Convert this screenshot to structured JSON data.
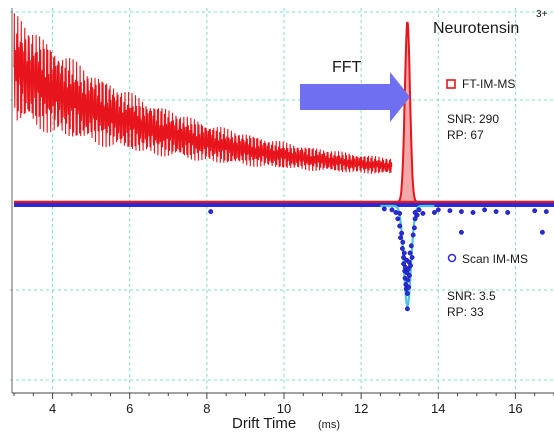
{
  "chart_data": {
    "type": "line",
    "title": "",
    "xlabel": "Drift Time",
    "xlabel_unit": "(ms)",
    "ylabel": "",
    "xlim": [
      3,
      17
    ],
    "x_ticks": [
      4,
      6,
      8,
      10,
      12,
      14,
      16
    ],
    "grid": true,
    "colors": {
      "ft": "#e8141c",
      "scan": "#2a2ad8",
      "fit": "#4cc4e8",
      "arrow": "#6f6ff2",
      "grid": "#7fdcc8"
    },
    "annotations": {
      "analyte": "Neurotensin",
      "charge": "3+",
      "arrow_label": "FFT"
    },
    "series": [
      {
        "name": "FT-IM-MS",
        "snr_label": "SNR: 290",
        "rp_label": "RP: 67",
        "decay_start_x": 3.0,
        "decay_end_x": 12.8,
        "peak_x": 13.2,
        "peak_relative_height": 1.0
      },
      {
        "name": "Scan IM-MS",
        "snr_label": "SNR: 3.5",
        "rp_label": "RP: 33",
        "peak_x": 13.2,
        "points": [
          [
            12.8,
            0.02
          ],
          [
            12.9,
            0.05
          ],
          [
            12.95,
            0.12
          ],
          [
            13.0,
            0.2
          ],
          [
            13.02,
            0.33
          ],
          [
            13.05,
            0.28
          ],
          [
            13.07,
            0.45
          ],
          [
            13.08,
            0.38
          ],
          [
            13.1,
            0.55
          ],
          [
            13.1,
            0.62
          ],
          [
            13.12,
            0.5
          ],
          [
            13.13,
            0.7
          ],
          [
            13.14,
            0.78
          ],
          [
            13.15,
            0.66
          ],
          [
            13.16,
            0.85
          ],
          [
            13.17,
            0.9
          ],
          [
            13.18,
            0.58
          ],
          [
            13.19,
            0.72
          ],
          [
            13.2,
            0.95
          ],
          [
            13.21,
            0.8
          ],
          [
            13.22,
            0.68
          ],
          [
            13.23,
            0.88
          ],
          [
            13.24,
            0.6
          ],
          [
            13.25,
            0.75
          ],
          [
            13.27,
            0.5
          ],
          [
            13.28,
            0.64
          ],
          [
            13.3,
            0.42
          ],
          [
            13.32,
            0.55
          ],
          [
            13.35,
            0.3
          ],
          [
            13.38,
            0.22
          ],
          [
            13.4,
            0.12
          ],
          [
            13.45,
            0.08
          ],
          [
            13.5,
            0.02
          ],
          [
            13.2,
            1.12
          ],
          [
            12.6,
            0.01
          ],
          [
            8.1,
            0.04
          ],
          [
            13.6,
            0.06
          ],
          [
            13.9,
            0.05
          ],
          [
            14.3,
            0.03
          ],
          [
            14.6,
            0.04
          ],
          [
            14.9,
            0.05
          ],
          [
            15.2,
            0.02
          ],
          [
            15.5,
            0.04
          ],
          [
            15.8,
            0.05
          ],
          [
            16.5,
            0.03
          ],
          [
            16.8,
            0.04
          ],
          [
            14.0,
            0.02
          ],
          [
            14.6,
            0.27
          ],
          [
            16.7,
            0.27
          ],
          [
            13.0,
            0.06
          ],
          [
            13.4,
            0.05
          ]
        ]
      }
    ]
  }
}
